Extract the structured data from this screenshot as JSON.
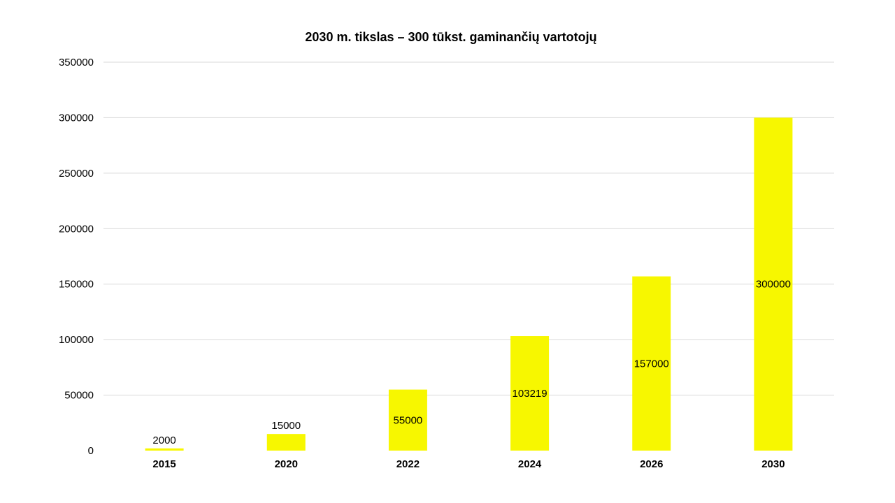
{
  "chart_data": {
    "type": "bar",
    "title": "2030 m. tikslas – 300 tūkst. gaminančių  vartotojų",
    "categories": [
      "2015",
      "2020",
      "2022",
      "2024",
      "2026",
      "2030"
    ],
    "values": [
      2000,
      15000,
      55000,
      103219,
      157000,
      300000
    ],
    "data_labels": [
      "2000",
      "15000",
      "55000",
      "103219",
      "157000",
      "300000"
    ],
    "xlabel": "",
    "ylabel": "",
    "ylim": [
      0,
      350000
    ],
    "yticks": [
      0,
      50000,
      100000,
      150000,
      200000,
      250000,
      300000,
      350000
    ],
    "ytick_labels": [
      "0",
      "50000",
      "100000",
      "150000",
      "200000",
      "250000",
      "300000",
      "350000"
    ],
    "grid": true,
    "legend": "none",
    "bar_color": "#F7F700"
  }
}
